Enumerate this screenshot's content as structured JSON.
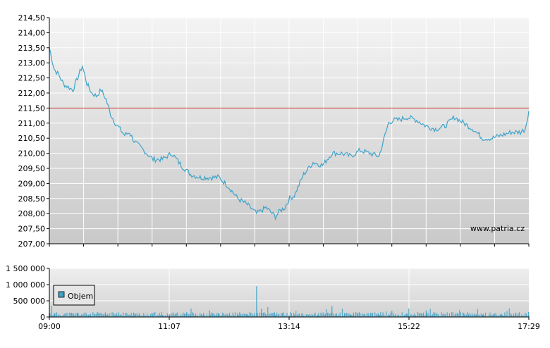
{
  "chart_data": [
    {
      "type": "line",
      "title": "",
      "xlabel": "",
      "ylabel": "",
      "ylim": [
        207.0,
        214.5
      ],
      "y_ticks": [
        "214,50",
        "214,00",
        "213,50",
        "213,00",
        "212,50",
        "212,00",
        "211,50",
        "211,00",
        "210,50",
        "210,00",
        "209,50",
        "209,00",
        "208,50",
        "208,00",
        "207,50",
        "207,00"
      ],
      "y_tick_values": [
        214.5,
        214.0,
        213.5,
        213.0,
        212.5,
        212.0,
        211.5,
        211.0,
        210.5,
        210.0,
        209.5,
        209.0,
        208.5,
        208.0,
        207.5,
        207.0
      ],
      "x_range": [
        "09:00",
        "17:29"
      ],
      "reference_line": 211.5,
      "watermark": "www.patria.cz",
      "grid": true,
      "series": [
        {
          "x": [
            "09:00",
            "09:05",
            "09:10",
            "09:15",
            "09:20",
            "09:25",
            "09:30",
            "09:35",
            "09:40",
            "09:45",
            "09:50",
            "09:55",
            "10:00",
            "10:05",
            "10:10",
            "10:15",
            "10:20",
            "10:25",
            "10:30",
            "10:40",
            "10:50",
            "11:00",
            "11:10",
            "11:20",
            "11:30",
            "11:40",
            "11:50",
            "12:00",
            "12:10",
            "12:20",
            "12:30",
            "12:40",
            "12:50",
            "13:00",
            "13:05",
            "13:10",
            "13:15",
            "13:20",
            "13:30",
            "13:40",
            "13:50",
            "14:00",
            "14:10",
            "14:20",
            "14:30",
            "14:40",
            "14:50",
            "15:00",
            "15:05",
            "15:10",
            "15:20",
            "15:30",
            "15:40",
            "15:50",
            "16:00",
            "16:10",
            "16:20",
            "16:30",
            "16:40",
            "16:50",
            "17:00",
            "17:10",
            "17:20",
            "17:25",
            "17:29"
          ],
          "values": [
            213.5,
            212.8,
            212.6,
            212.3,
            212.2,
            212.1,
            212.5,
            212.9,
            212.3,
            212.0,
            211.9,
            212.1,
            211.8,
            211.3,
            211.0,
            210.8,
            210.6,
            210.7,
            210.4,
            210.1,
            209.8,
            209.8,
            210.0,
            209.6,
            209.3,
            209.2,
            209.2,
            209.2,
            208.9,
            208.5,
            208.3,
            208.0,
            208.2,
            207.9,
            208.1,
            208.2,
            208.5,
            208.6,
            209.3,
            209.7,
            209.6,
            210.0,
            210.0,
            209.9,
            210.1,
            210.0,
            209.9,
            211.0,
            211.1,
            211.1,
            211.2,
            211.1,
            210.9,
            210.8,
            210.9,
            211.2,
            211.0,
            210.8,
            210.5,
            210.5,
            210.6,
            210.7,
            210.7,
            210.8,
            211.4
          ]
        }
      ]
    },
    {
      "type": "bar",
      "title": "",
      "xlabel": "",
      "ylabel": "",
      "ylim": [
        0,
        1500000
      ],
      "y_ticks": [
        "1 500 000",
        "1 000 000",
        "500 000",
        "0"
      ],
      "y_tick_values": [
        1500000,
        1000000,
        500000,
        0
      ],
      "x_ticks": [
        "09:00",
        "11:07",
        "13:14",
        "15:22",
        "17:29"
      ],
      "legend": {
        "placement": "top-left",
        "label": "Objem"
      },
      "series": [
        {
          "name": "Objem",
          "x": [
            "09:00",
            "09:02",
            "09:05",
            "09:15",
            "09:25",
            "09:30",
            "10:00",
            "10:30",
            "11:00",
            "11:30",
            "11:50",
            "12:00",
            "12:20",
            "12:30",
            "12:40",
            "12:45",
            "12:50",
            "13:00",
            "13:20",
            "13:30",
            "13:45",
            "14:00",
            "14:20",
            "14:30",
            "14:50",
            "15:00",
            "15:20",
            "15:40",
            "16:00",
            "16:20",
            "16:40",
            "17:00",
            "17:15",
            "17:29"
          ],
          "values": [
            120000,
            350000,
            80000,
            60000,
            40000,
            130000,
            50000,
            40000,
            60000,
            45000,
            200000,
            80000,
            120000,
            60000,
            950000,
            250000,
            70000,
            60000,
            50000,
            30000,
            60000,
            330000,
            80000,
            50000,
            60000,
            80000,
            100000,
            200000,
            90000,
            120000,
            70000,
            90000,
            130000,
            60000
          ]
        }
      ]
    }
  ]
}
